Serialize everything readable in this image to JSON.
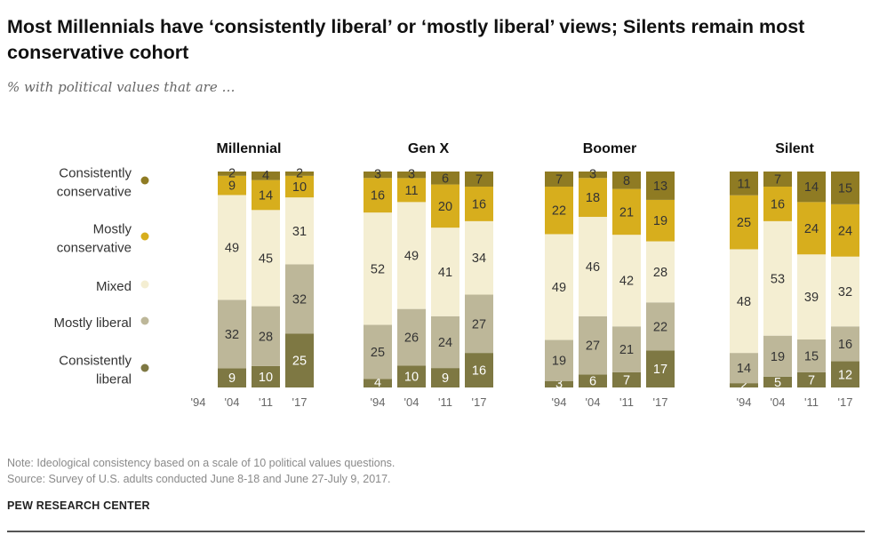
{
  "header": {
    "title": "Most Millennials have ‘consistently liberal’ or ‘mostly liberal’ views; Silents remain most conservative cohort",
    "subtitle": "% with political values that are …"
  },
  "footer": {
    "note": "Note: Ideological consistency based on a scale of 10 political values questions.",
    "source": "Source: Survey of U.S. adults conducted June 8-18 and June 27-July 9, 2017.",
    "brand": "PEW RESEARCH CENTER"
  },
  "chart_data": {
    "type": "bar",
    "stacked": true,
    "title": "Most Millennials have ‘consistently liberal’ or ‘mostly liberal’ views; Silents remain most conservative cohort",
    "ylabel": "% with political values that are …",
    "ylim": [
      0,
      100
    ],
    "categories": [
      "'94",
      "'04",
      "'11",
      "'17"
    ],
    "legend_position": "left",
    "legend": [
      {
        "name": "Consistently conservative",
        "lines": [
          "Consistently",
          "conservative"
        ],
        "color": "#8f7b23"
      },
      {
        "name": "Mostly conservative",
        "lines": [
          "Mostly",
          "conservative"
        ],
        "color": "#d7ae1d"
      },
      {
        "name": "Mixed",
        "lines": [
          "Mixed"
        ],
        "color": "#f4eed2"
      },
      {
        "name": "Mostly liberal",
        "lines": [
          "Mostly liberal"
        ],
        "color": "#bdb799"
      },
      {
        "name": "Consistently liberal",
        "lines": [
          "Consistently",
          "liberal"
        ],
        "color": "#7e7843"
      }
    ],
    "series_order_bottom_to_top": [
      "Consistently liberal",
      "Mostly liberal",
      "Mixed",
      "Mostly conservative",
      "Consistently conservative"
    ],
    "panels": [
      {
        "name": "Millennial",
        "bars": [
          null,
          {
            "Consistently liberal": 9,
            "Mostly liberal": 32,
            "Mixed": 49,
            "Mostly conservative": 9,
            "Consistently conservative": 2
          },
          {
            "Consistently liberal": 10,
            "Mostly liberal": 28,
            "Mixed": 45,
            "Mostly conservative": 14,
            "Consistently conservative": 4
          },
          {
            "Consistently liberal": 25,
            "Mostly liberal": 32,
            "Mixed": 31,
            "Mostly conservative": 10,
            "Consistently conservative": 2
          }
        ]
      },
      {
        "name": "Gen X",
        "bars": [
          {
            "Consistently liberal": 4,
            "Mostly liberal": 25,
            "Mixed": 52,
            "Mostly conservative": 16,
            "Consistently conservative": 3
          },
          {
            "Consistently liberal": 10,
            "Mostly liberal": 26,
            "Mixed": 49,
            "Mostly conservative": 11,
            "Consistently conservative": 3
          },
          {
            "Consistently liberal": 9,
            "Mostly liberal": 24,
            "Mixed": 41,
            "Mostly conservative": 20,
            "Consistently conservative": 6
          },
          {
            "Consistently liberal": 16,
            "Mostly liberal": 27,
            "Mixed": 34,
            "Mostly conservative": 16,
            "Consistently conservative": 7
          }
        ]
      },
      {
        "name": "Boomer",
        "bars": [
          {
            "Consistently liberal": 3,
            "Mostly liberal": 19,
            "Mixed": 49,
            "Mostly conservative": 22,
            "Consistently conservative": 7
          },
          {
            "Consistently liberal": 6,
            "Mostly liberal": 27,
            "Mixed": 46,
            "Mostly conservative": 18,
            "Consistently conservative": 3
          },
          {
            "Consistently liberal": 7,
            "Mostly liberal": 21,
            "Mixed": 42,
            "Mostly conservative": 21,
            "Consistently conservative": 8
          },
          {
            "Consistently liberal": 17,
            "Mostly liberal": 22,
            "Mixed": 28,
            "Mostly conservative": 19,
            "Consistently conservative": 13
          }
        ]
      },
      {
        "name": "Silent",
        "bars": [
          {
            "Consistently liberal": 2,
            "Mostly liberal": 14,
            "Mixed": 48,
            "Mostly conservative": 25,
            "Consistently conservative": 11
          },
          {
            "Consistently liberal": 5,
            "Mostly liberal": 19,
            "Mixed": 53,
            "Mostly conservative": 16,
            "Consistently conservative": 7
          },
          {
            "Consistently liberal": 7,
            "Mostly liberal": 15,
            "Mixed": 39,
            "Mostly conservative": 24,
            "Consistently conservative": 14
          },
          {
            "Consistently liberal": 12,
            "Mostly liberal": 16,
            "Mixed": 32,
            "Mostly conservative": 24,
            "Consistently conservative": 15
          }
        ]
      }
    ]
  }
}
